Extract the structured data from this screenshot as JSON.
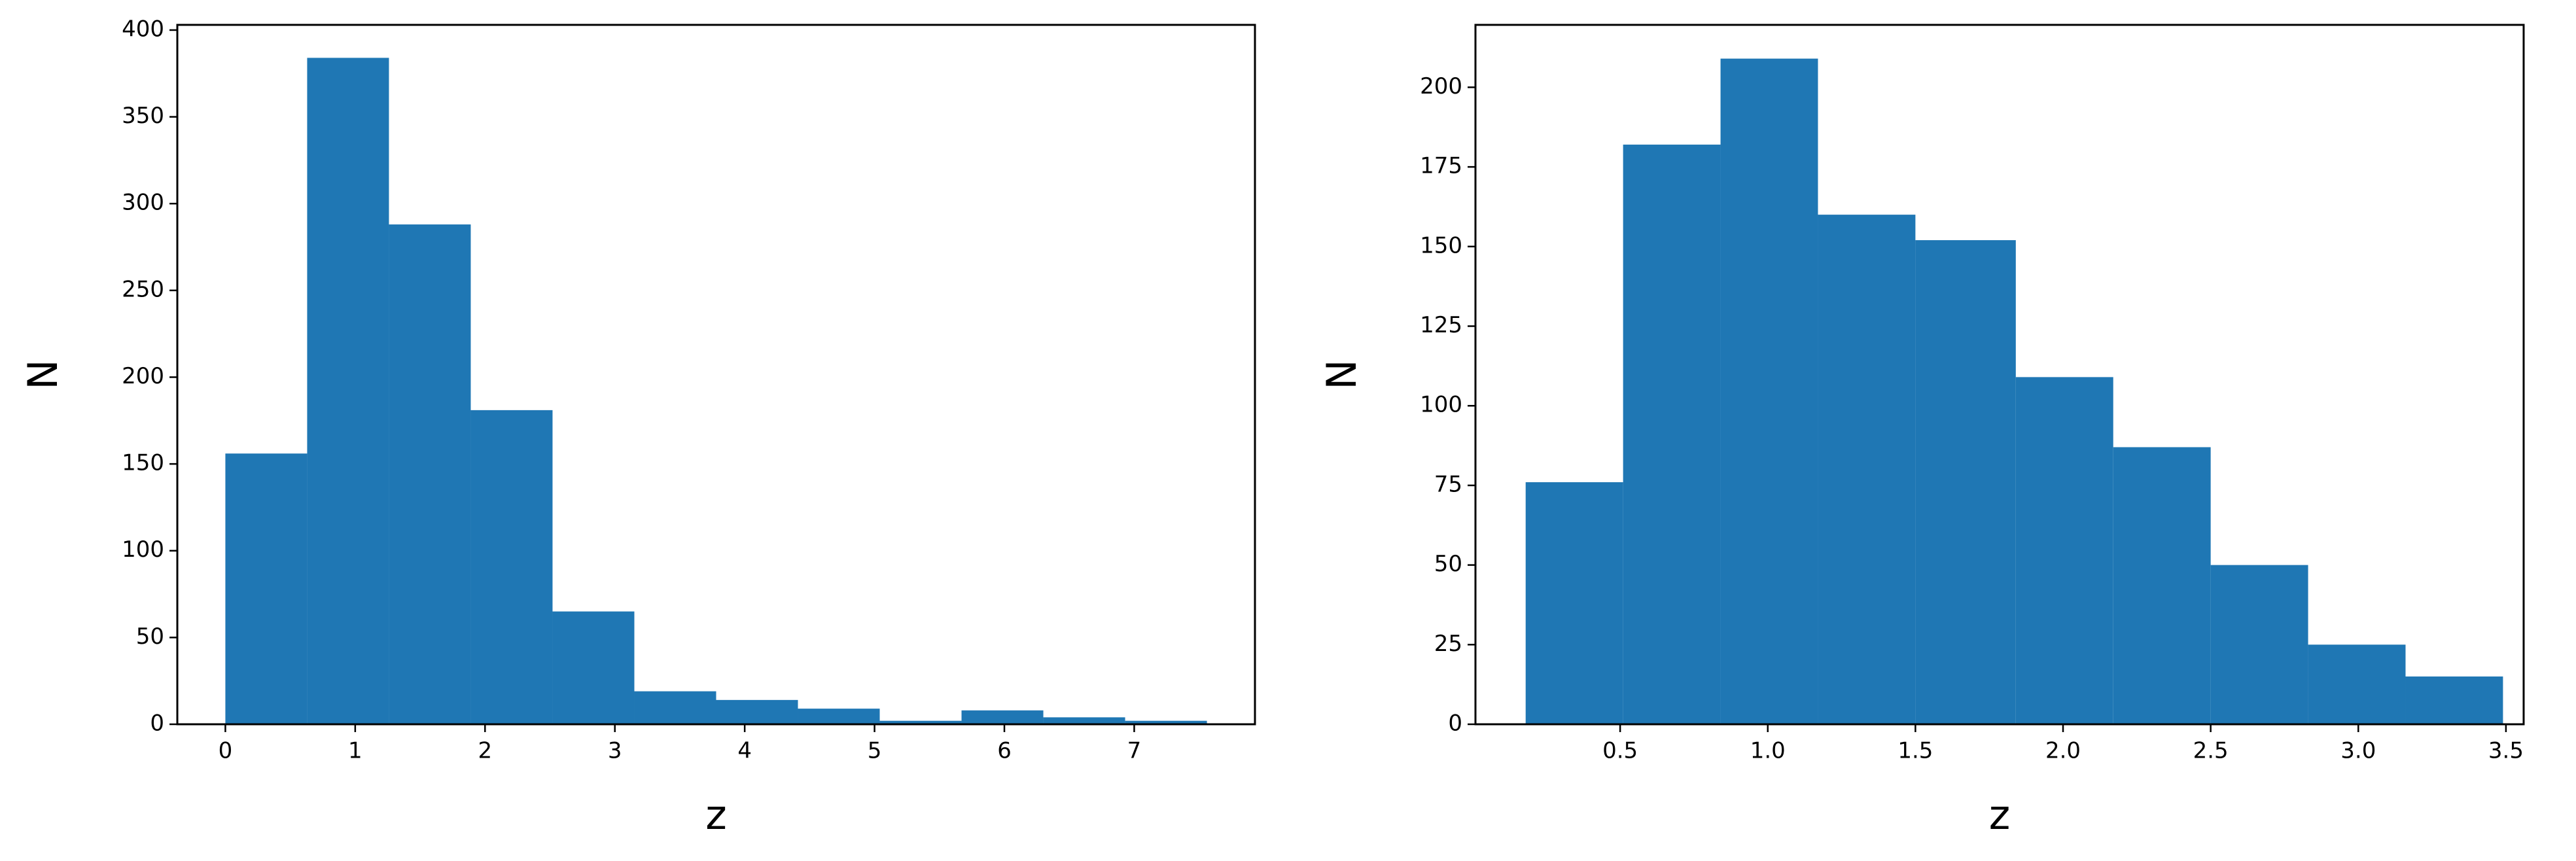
{
  "chart_data": [
    {
      "type": "histogram",
      "xlabel": "z",
      "ylabel": "N",
      "color": "#1f77b4",
      "bins": [
        0,
        0.63,
        1.26,
        1.89,
        2.52,
        3.15,
        3.78,
        4.41,
        5.04,
        5.67,
        6.3,
        6.93,
        7.56
      ],
      "values": [
        156,
        384,
        288,
        181,
        65,
        19,
        14,
        9,
        2,
        8,
        4,
        2
      ],
      "xlim": [
        -0.37,
        7.93
      ],
      "ylim": [
        0,
        403
      ],
      "xticks": [
        0,
        1,
        2,
        3,
        4,
        5,
        6,
        7
      ],
      "yticks": [
        0,
        50,
        100,
        150,
        200,
        250,
        300,
        350,
        400
      ]
    },
    {
      "type": "histogram",
      "xlabel": "z",
      "ylabel": "N",
      "color": "#1f77b4",
      "bins": [
        0.18,
        0.51,
        0.84,
        1.17,
        1.5,
        1.84,
        2.17,
        2.5,
        2.83,
        3.16,
        3.49
      ],
      "values": [
        76,
        182,
        209,
        160,
        152,
        109,
        87,
        50,
        25,
        15
      ],
      "xlim": [
        0.01,
        3.56
      ],
      "ylim": [
        0,
        219.6
      ],
      "xticks": [
        0.5,
        {
          "value": 1,
          "label": "1.0"
        },
        1.5,
        {
          "value": 2,
          "label": "2.0"
        },
        2.5,
        {
          "value": 3,
          "label": "3.0"
        },
        3.5
      ],
      "yticks": [
        0,
        25,
        50,
        75,
        100,
        125,
        150,
        175,
        200
      ]
    }
  ]
}
